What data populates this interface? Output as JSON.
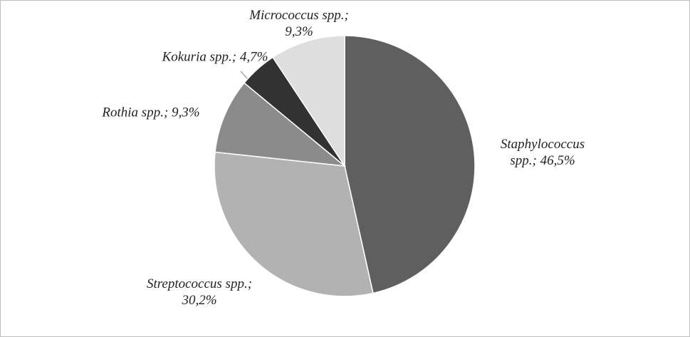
{
  "chart_data": {
    "type": "pie",
    "values": [
      46.5,
      30.2,
      9.3,
      4.7,
      9.3
    ],
    "value_labels": [
      "Staphylococcus spp.; 46,5%",
      "Streptococcus spp.; 30,2%",
      "Rothia spp.; 9,3%",
      "Kokuria spp.; 4,7%",
      "Micrococcus spp.; 9,3%"
    ],
    "colors": [
      "#5f5f5f",
      "#b2b2b2",
      "#8b8b8b",
      "#323232",
      "#dedede"
    ]
  }
}
